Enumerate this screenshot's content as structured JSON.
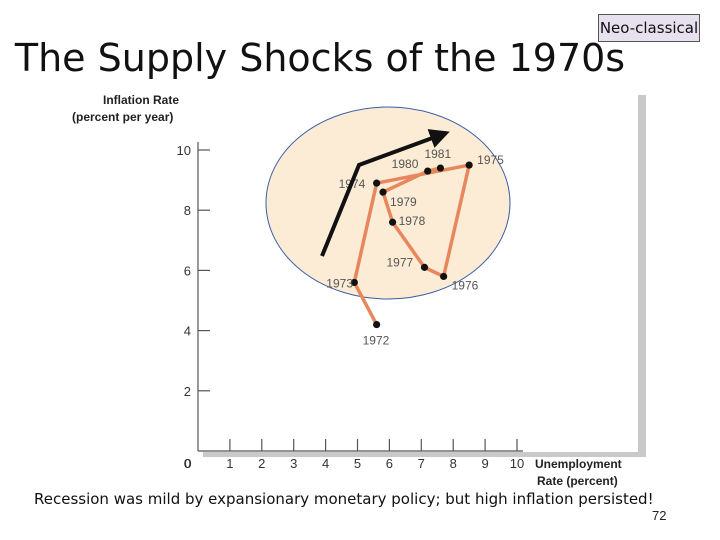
{
  "badge": "Neo-classical",
  "title": "The Supply Shocks of the 1970s",
  "caption": "Recession was mild by expansionary monetary policy; but high inflation persisted!",
  "slide_number": "72",
  "chart_data": {
    "type": "line",
    "ylabel_lines": [
      "Inflation Rate",
      "(percent per year)"
    ],
    "xlabel_lines": [
      "Unemployment",
      "Rate (percent)"
    ],
    "xlim": [
      0,
      10
    ],
    "ylim": [
      0,
      10
    ],
    "x_ticks": [
      "0",
      "1",
      "2",
      "3",
      "4",
      "5",
      "6",
      "7",
      "8",
      "9",
      "10"
    ],
    "y_ticks": [
      "0",
      "2",
      "4",
      "6",
      "8",
      "10"
    ],
    "series_color": "#e8875e",
    "points": [
      {
        "label": "1972",
        "x": 5.6,
        "y": 4.2
      },
      {
        "label": "1973",
        "x": 4.9,
        "y": 5.6
      },
      {
        "label": "1974",
        "x": 5.6,
        "y": 8.9
      },
      {
        "label": "1975",
        "x": 8.5,
        "y": 9.5
      },
      {
        "label": "1976",
        "x": 7.7,
        "y": 5.8
      },
      {
        "label": "1977",
        "x": 7.1,
        "y": 6.1
      },
      {
        "label": "1978",
        "x": 6.1,
        "y": 7.6
      },
      {
        "label": "1979",
        "x": 5.8,
        "y": 8.6
      },
      {
        "label": "1980",
        "x": 7.2,
        "y": 9.3
      },
      {
        "label": "1981",
        "x": 7.6,
        "y": 9.4
      }
    ]
  }
}
